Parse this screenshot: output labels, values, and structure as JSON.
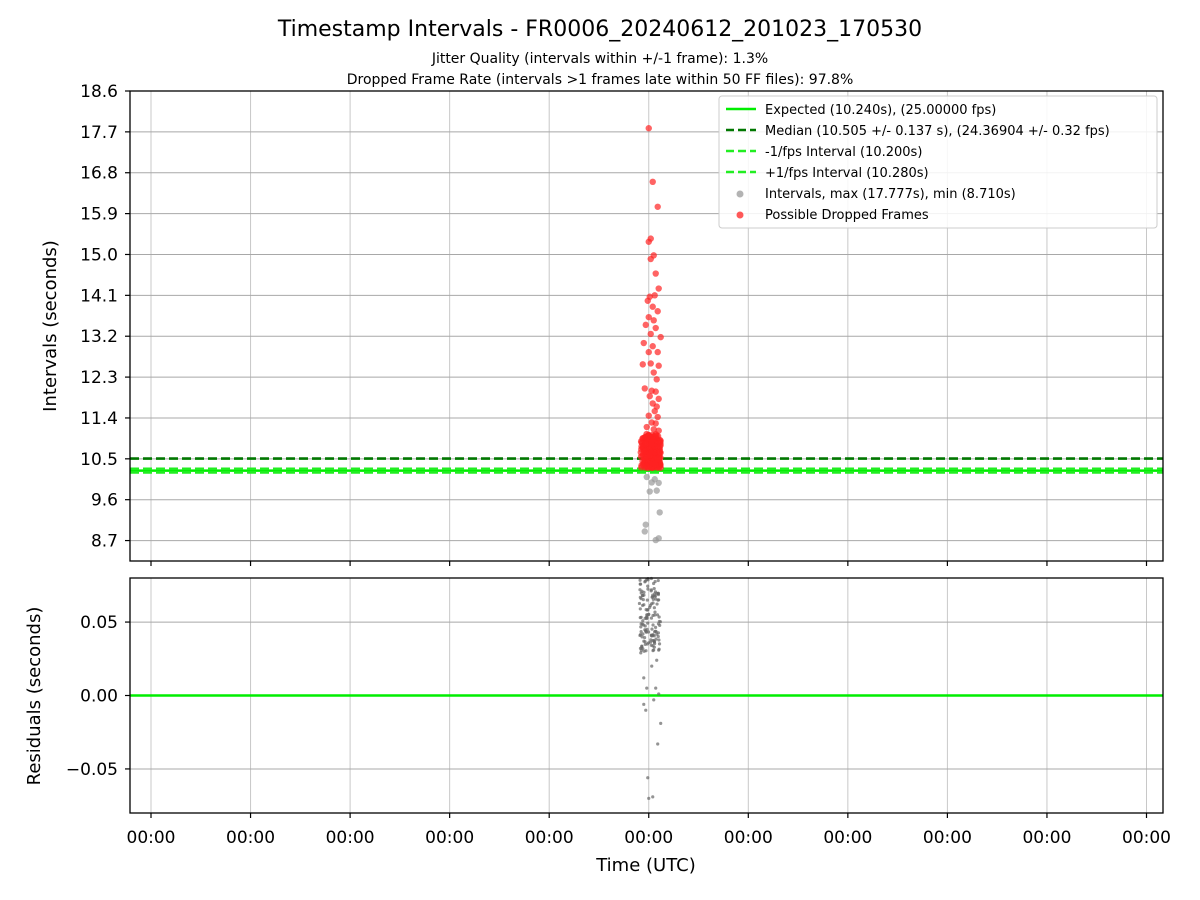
{
  "chart_data": [
    {
      "type": "scatter",
      "title": "Timestamp Intervals - FR0006_20240612_201023_170530",
      "subtitle_lines": [
        "Jitter Quality (intervals within +/-1 frame): 1.3%",
        "Dropped Frame Rate (intervals >1 frames late within 50 FF files): 97.8%"
      ],
      "ylabel": "Intervals (seconds)",
      "xlabel": "",
      "ylim": [
        8.25,
        18.6
      ],
      "yticks": [
        "18.6",
        "17.7",
        "16.8",
        "15.9",
        "15.0",
        "14.1",
        "13.2",
        "12.3",
        "11.4",
        "10.5",
        "9.6",
        "8.7"
      ],
      "yticks_values": [
        18.6,
        17.7,
        16.8,
        15.9,
        15.0,
        14.1,
        13.2,
        12.3,
        11.4,
        10.5,
        9.6,
        8.7
      ],
      "grid": true,
      "legend_placement": "upper-right",
      "lines": [
        {
          "name": "Expected (10.240s), (25.00000 fps)",
          "y": 10.24,
          "color": "#00ee00",
          "style": "solid"
        },
        {
          "name": "Median (10.505 +/- 0.137 s), (24.36904 +/- 0.32 fps)",
          "y": 10.505,
          "color": "#007700",
          "style": "dashed"
        },
        {
          "name": "-1/fps Interval (10.200s)",
          "y": 10.2,
          "color": "#22ee22",
          "style": "dashed"
        },
        {
          "name": "+1/fps Interval (10.280s)",
          "y": 10.28,
          "color": "#22ee22",
          "style": "dashed"
        }
      ],
      "series": [
        {
          "name": "Intervals, max (17.777s), min (8.710s)",
          "color": "#999999",
          "points": [
            {
              "x": -0.02,
              "y": 10.1
            },
            {
              "x": 0.06,
              "y": 10.05
            },
            {
              "x": 0.03,
              "y": 9.98
            },
            {
              "x": 0.1,
              "y": 9.97
            },
            {
              "x": 0.01,
              "y": 9.78
            },
            {
              "x": 0.08,
              "y": 9.8
            },
            {
              "x": 0.11,
              "y": 9.32
            },
            {
              "x": -0.03,
              "y": 9.05
            },
            {
              "x": -0.04,
              "y": 8.9
            },
            {
              "x": 0.1,
              "y": 8.75
            },
            {
              "x": 0.07,
              "y": 8.71
            }
          ]
        },
        {
          "name": "Possible Dropped Frames",
          "color": "#ff2222",
          "points": [
            {
              "x": 0.0,
              "y": 17.78
            },
            {
              "x": 0.04,
              "y": 16.6
            },
            {
              "x": 0.09,
              "y": 16.05
            },
            {
              "x": 0.02,
              "y": 15.35
            },
            {
              "x": 0.0,
              "y": 15.28
            },
            {
              "x": 0.05,
              "y": 14.98
            },
            {
              "x": 0.02,
              "y": 14.9
            },
            {
              "x": 0.07,
              "y": 14.58
            },
            {
              "x": 0.1,
              "y": 14.25
            },
            {
              "x": 0.06,
              "y": 14.1
            },
            {
              "x": 0.01,
              "y": 14.07
            },
            {
              "x": -0.01,
              "y": 13.98
            },
            {
              "x": 0.04,
              "y": 13.85
            },
            {
              "x": 0.09,
              "y": 13.75
            },
            {
              "x": 0.0,
              "y": 13.62
            },
            {
              "x": 0.05,
              "y": 13.55
            },
            {
              "x": -0.03,
              "y": 13.45
            },
            {
              "x": 0.07,
              "y": 13.38
            },
            {
              "x": 0.02,
              "y": 13.25
            },
            {
              "x": 0.12,
              "y": 13.18
            },
            {
              "x": -0.05,
              "y": 13.05
            },
            {
              "x": 0.04,
              "y": 12.98
            },
            {
              "x": 0.0,
              "y": 12.85
            },
            {
              "x": 0.09,
              "y": 12.85
            },
            {
              "x": -0.06,
              "y": 12.58
            },
            {
              "x": 0.02,
              "y": 12.6
            },
            {
              "x": 0.1,
              "y": 12.55
            },
            {
              "x": 0.05,
              "y": 12.4
            },
            {
              "x": 0.08,
              "y": 12.25
            },
            {
              "x": 0.03,
              "y": 12.0
            },
            {
              "x": -0.04,
              "y": 12.05
            },
            {
              "x": 0.07,
              "y": 11.98
            },
            {
              "x": 0.01,
              "y": 11.88
            },
            {
              "x": 0.1,
              "y": 11.82
            },
            {
              "x": 0.04,
              "y": 11.72
            },
            {
              "x": 0.08,
              "y": 11.65
            },
            {
              "x": 0.06,
              "y": 11.55
            },
            {
              "x": 0.0,
              "y": 11.45
            },
            {
              "x": 0.09,
              "y": 11.42
            },
            {
              "x": 0.03,
              "y": 11.3
            },
            {
              "x": 0.07,
              "y": 11.28
            },
            {
              "x": -0.02,
              "y": 11.2
            },
            {
              "x": 0.05,
              "y": 11.15
            },
            {
              "x": 0.1,
              "y": 11.12
            }
          ]
        }
      ],
      "dense_cluster": {
        "series": "Possible Dropped Frames",
        "x_range": [
          -0.08,
          0.12
        ],
        "y_range": [
          10.3,
          11.05
        ]
      },
      "x_tick_labels": [
        "00:00",
        "00:00",
        "00:00",
        "00:00",
        "00:00",
        "00:00",
        "00:00",
        "00:00",
        "00:00",
        "00:00",
        "00:00"
      ]
    },
    {
      "type": "scatter",
      "ylabel": "Residuals (seconds)",
      "xlabel": "Time (UTC)",
      "ylim": [
        -0.08,
        0.08
      ],
      "yticks": [
        "0.05",
        "0.00",
        "−0.05"
      ],
      "yticks_values": [
        0.05,
        0.0,
        -0.05
      ],
      "grid": true,
      "lines": [
        {
          "y": 0.0,
          "color": "#00ee00",
          "style": "solid"
        }
      ],
      "series": [
        {
          "color": "#666666",
          "points": [
            {
              "x": 0.1,
              "y": 0.001
            },
            {
              "x": 0.05,
              "y": -0.003
            },
            {
              "x": -0.05,
              "y": -0.006
            },
            {
              "x": -0.03,
              "y": -0.01
            },
            {
              "x": 0.12,
              "y": -0.019
            },
            {
              "x": 0.09,
              "y": -0.033
            },
            {
              "x": -0.01,
              "y": -0.056
            },
            {
              "x": 0.0,
              "y": -0.07
            },
            {
              "x": 0.04,
              "y": -0.069
            },
            {
              "x": -0.02,
              "y": 0.005
            },
            {
              "x": 0.07,
              "y": 0.005
            },
            {
              "x": -0.05,
              "y": 0.012
            },
            {
              "x": 0.03,
              "y": 0.02
            },
            {
              "x": 0.08,
              "y": 0.024
            },
            {
              "x": -0.08,
              "y": 0.029
            }
          ]
        }
      ],
      "dense_cluster": {
        "x_range": [
          -0.1,
          0.12
        ],
        "y_range": [
          0.03,
          0.08
        ]
      },
      "x_tick_labels": [
        "00:00",
        "00:00",
        "00:00",
        "00:00",
        "00:00",
        "00:00",
        "00:00",
        "00:00",
        "00:00",
        "00:00",
        "00:00"
      ]
    }
  ]
}
